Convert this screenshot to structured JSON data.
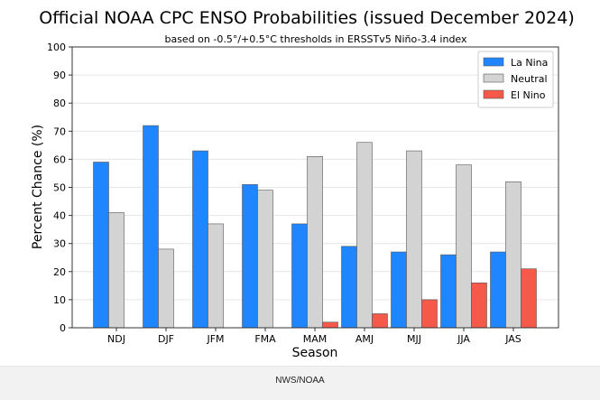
{
  "chart_data": {
    "type": "bar",
    "title": "Official NOAA CPC ENSO Probabilities (issued December 2024)",
    "subtitle": "based on -0.5°/+0.5°C thresholds in ERSSTv5 Niño-3.4 index",
    "xlabel": "Season",
    "ylabel": "Percent Chance (%)",
    "ylim": [
      0,
      100
    ],
    "yticks": [
      "0",
      "10",
      "20",
      "30",
      "40",
      "50",
      "60",
      "70",
      "80",
      "90",
      "100"
    ],
    "grid": true,
    "legend_position": "top-right",
    "categories": [
      "NDJ",
      "DJF",
      "JFM",
      "FMA",
      "MAM",
      "AMJ",
      "MJJ",
      "JJA",
      "JAS"
    ],
    "series": [
      {
        "name": "La Nina",
        "color": "#1f86ff",
        "values": [
          59,
          72,
          63,
          51,
          37,
          29,
          27,
          26,
          27
        ]
      },
      {
        "name": "Neutral",
        "color": "#d3d3d3",
        "values": [
          41,
          28,
          37,
          49,
          61,
          66,
          63,
          58,
          52
        ]
      },
      {
        "name": "El Nino",
        "color": "#f5594a",
        "values": [
          0,
          0,
          0,
          0,
          2,
          5,
          10,
          16,
          21
        ]
      }
    ]
  },
  "footer": {
    "credit": "NWS/NOAA"
  }
}
